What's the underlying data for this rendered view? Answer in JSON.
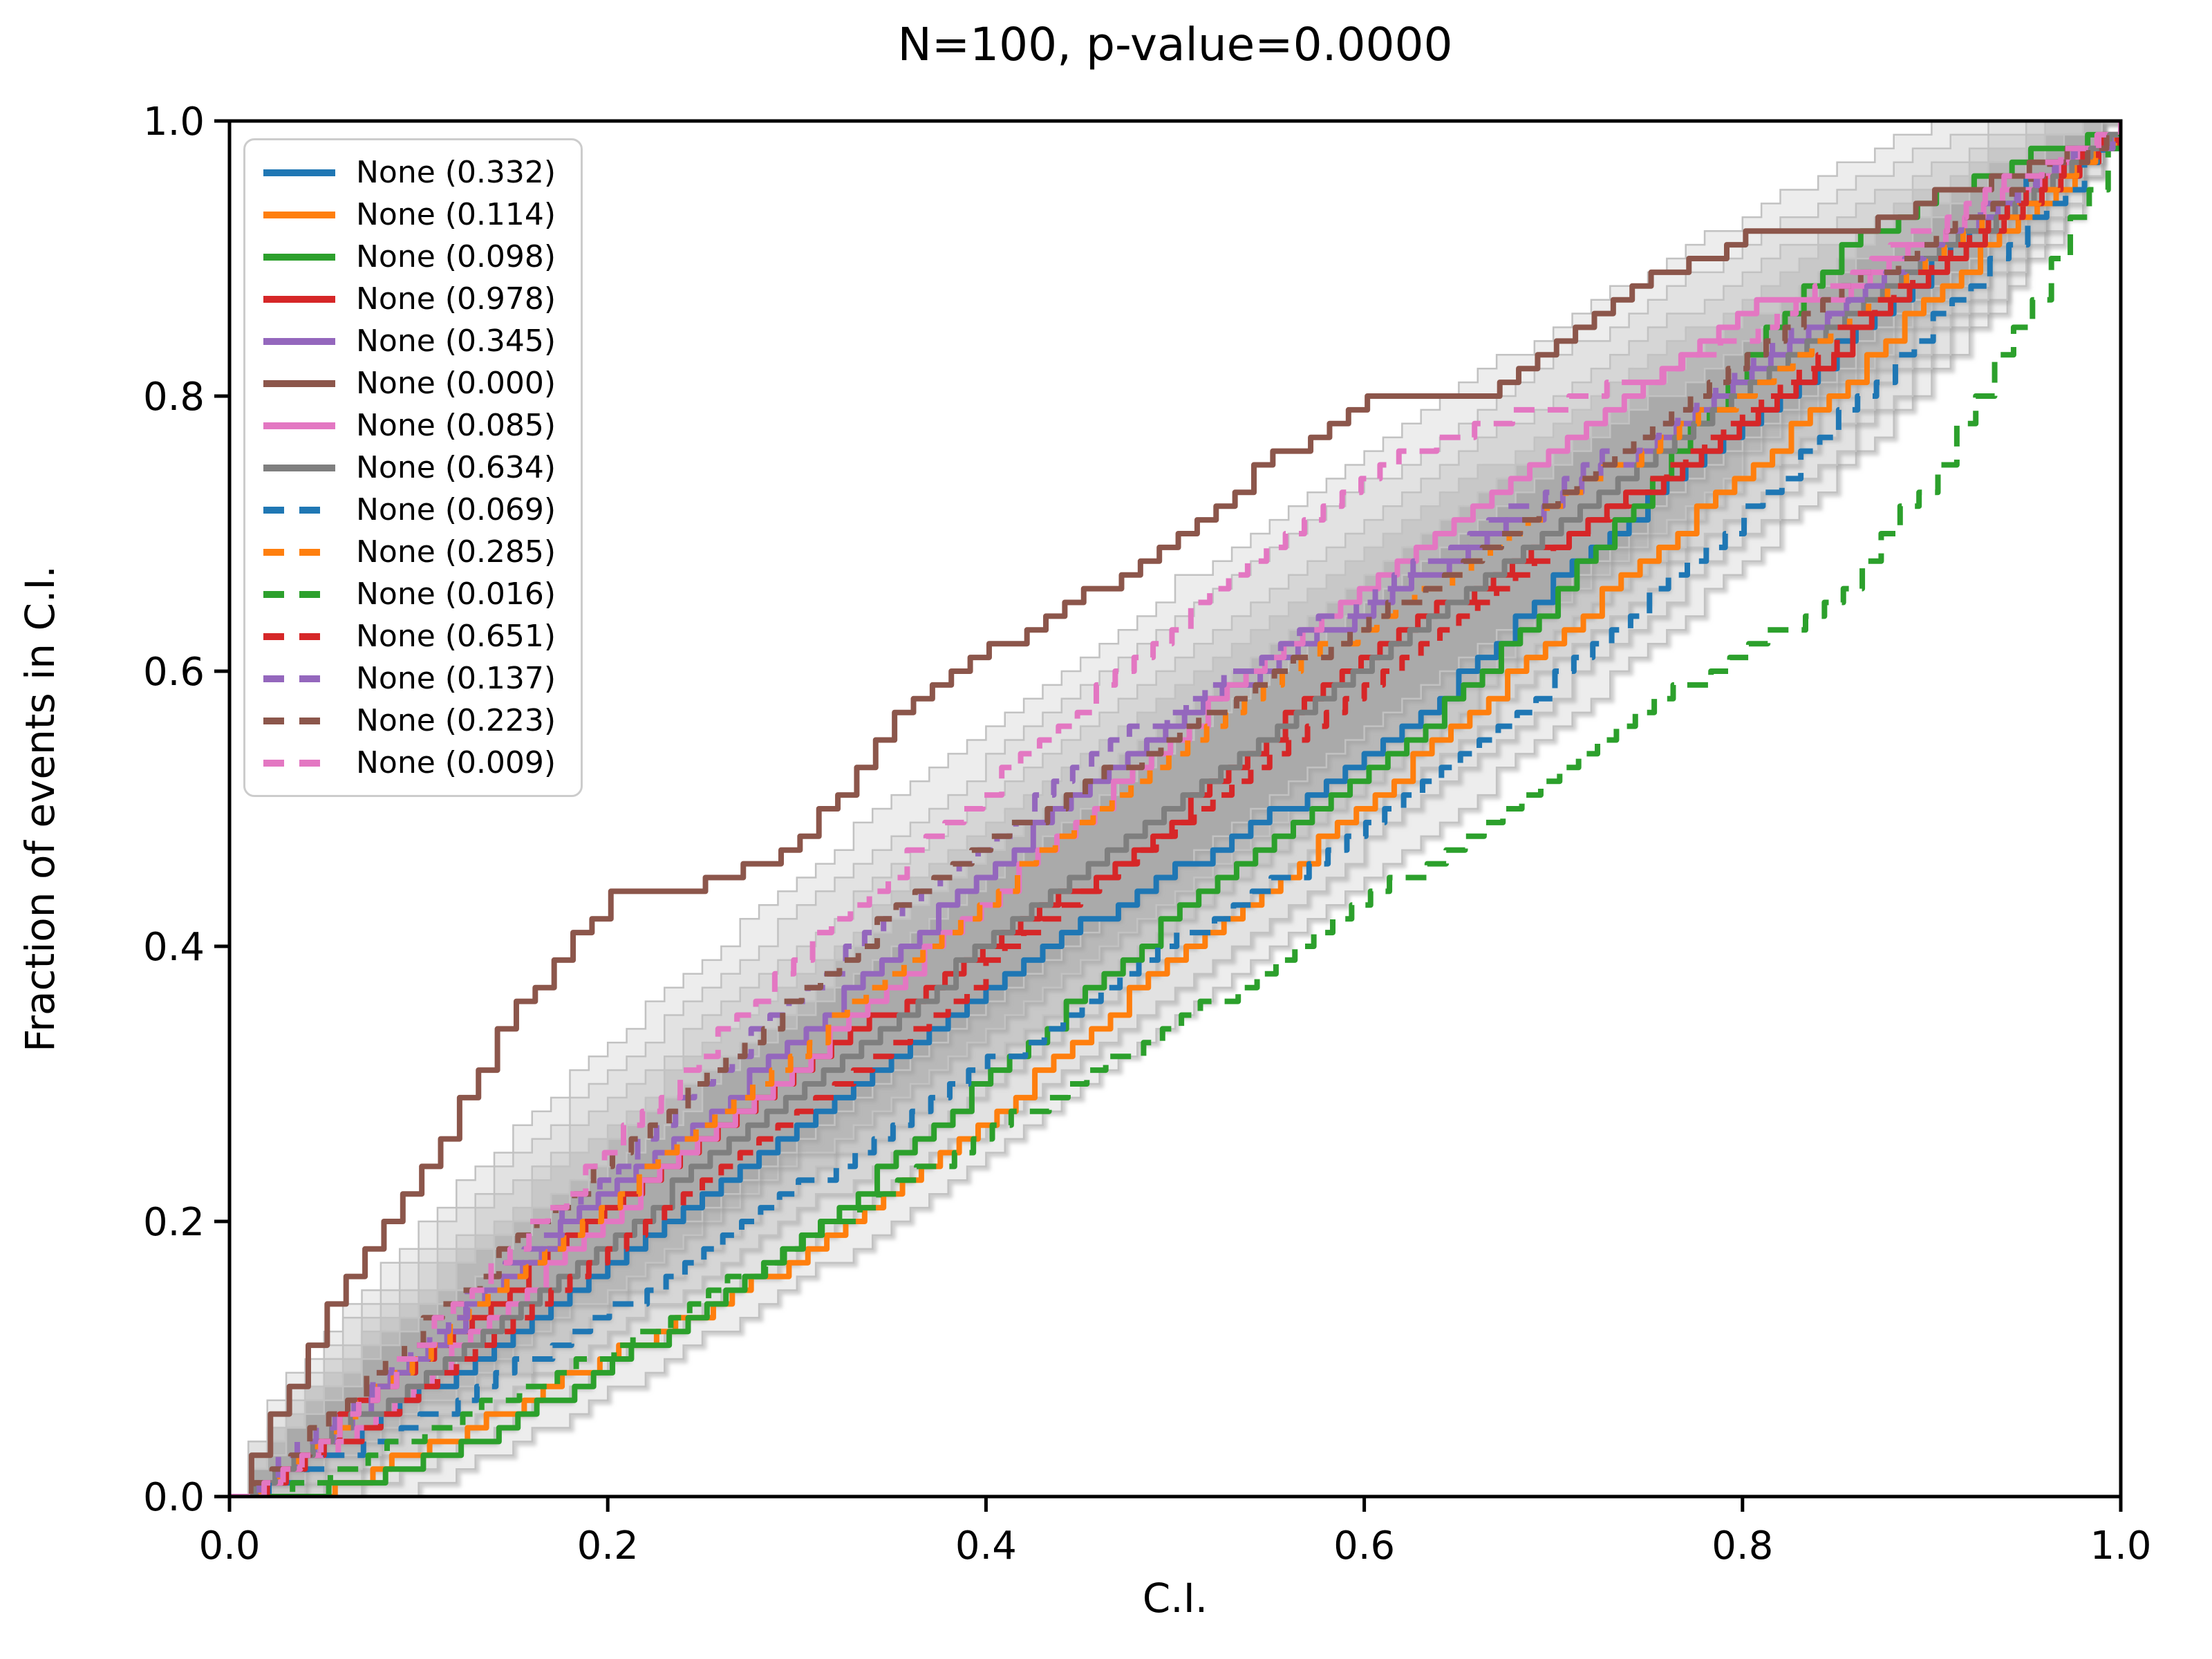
{
  "figure": {
    "background": "#ffffff",
    "kind": "matplotlib-style coverage plot"
  },
  "chart_data": {
    "type": "line",
    "title": "N=100, p-value=0.0000",
    "xlabel": "C.I.",
    "ylabel": "Fraction of events in C.I.",
    "n": 100,
    "xlim": [
      0,
      1
    ],
    "ylim": [
      0,
      1
    ],
    "xtick_values": [
      0,
      0.2,
      0.4,
      0.6,
      0.8,
      1.0
    ],
    "xtick_labels": [
      "0.0",
      "0.2",
      "0.4",
      "0.6",
      "0.8",
      "1.0"
    ],
    "ytick_values": [
      0,
      0.2,
      0.4,
      0.6,
      0.8,
      1.0
    ],
    "ytick_labels": [
      "0.0",
      "0.2",
      "0.4",
      "0.6",
      "0.8",
      "1.0"
    ],
    "grid": false,
    "legend": {
      "position": "upper left"
    },
    "confidence_bands": {
      "description": "nested stepped gray envelopes centered on the diagonal",
      "center_half_widths": [
        0.165,
        0.138,
        0.112,
        0.09,
        0.07,
        0.052
      ],
      "fill_colors": [
        "#ededed",
        "#e2e2e2",
        "#d6d6d6",
        "#c8c8c8",
        "#b8b8b8",
        "#aaaaaa"
      ],
      "edge_color": "#c2c2c2"
    },
    "x_grid": [
      0,
      0.05,
      0.1,
      0.15,
      0.2,
      0.25,
      0.3,
      0.35,
      0.4,
      0.45,
      0.5,
      0.55,
      0.6,
      0.65,
      0.7,
      0.75,
      0.8,
      0.85,
      0.9,
      0.95,
      1
    ],
    "series": [
      {
        "label": "None (0.332)",
        "p_value": 0.332,
        "color": "#1f77b4",
        "linestyle": "solid",
        "y": [
          0,
          0.04,
          0.08,
          0.12,
          0.17,
          0.22,
          0.27,
          0.32,
          0.37,
          0.42,
          0.46,
          0.5,
          0.54,
          0.6,
          0.67,
          0.73,
          0.78,
          0.84,
          0.9,
          0.96,
          1
        ]
      },
      {
        "label": "None (0.114)",
        "p_value": 0.114,
        "color": "#ff7f0e",
        "linestyle": "solid",
        "y": [
          0,
          0.01,
          0.04,
          0.07,
          0.11,
          0.14,
          0.18,
          0.23,
          0.28,
          0.34,
          0.4,
          0.45,
          0.51,
          0.57,
          0.63,
          0.69,
          0.75,
          0.81,
          0.88,
          0.94,
          1
        ]
      },
      {
        "label": "None (0.098)",
        "p_value": 0.098,
        "color": "#2ca02c",
        "linestyle": "solid",
        "y": [
          0,
          0.01,
          0.03,
          0.06,
          0.1,
          0.14,
          0.19,
          0.25,
          0.31,
          0.37,
          0.43,
          0.48,
          0.53,
          0.59,
          0.66,
          0.74,
          0.83,
          0.91,
          0.95,
          0.98,
          1
        ]
      },
      {
        "label": "None (0.978)",
        "p_value": 0.978,
        "color": "#d62728",
        "linestyle": "solid",
        "y": [
          0,
          0.05,
          0.11,
          0.16,
          0.22,
          0.27,
          0.32,
          0.36,
          0.41,
          0.45,
          0.5,
          0.56,
          0.62,
          0.66,
          0.7,
          0.74,
          0.79,
          0.84,
          0.9,
          0.95,
          1
        ]
      },
      {
        "label": "None (0.345)",
        "p_value": 0.345,
        "color": "#9467bd",
        "linestyle": "solid",
        "y": [
          0,
          0.05,
          0.11,
          0.17,
          0.23,
          0.28,
          0.34,
          0.4,
          0.46,
          0.52,
          0.57,
          0.61,
          0.65,
          0.69,
          0.73,
          0.77,
          0.82,
          0.87,
          0.91,
          0.96,
          1
        ]
      },
      {
        "label": "None (0.000)",
        "p_value": 0.0,
        "color": "#8c564b",
        "linestyle": "solid",
        "y": [
          0,
          0.14,
          0.24,
          0.36,
          0.44,
          0.45,
          0.48,
          0.57,
          0.62,
          0.66,
          0.7,
          0.76,
          0.8,
          0.8,
          0.84,
          0.89,
          0.92,
          0.92,
          0.95,
          0.97,
          1
        ]
      },
      {
        "label": "None (0.085)",
        "p_value": 0.085,
        "color": "#e377c2",
        "linestyle": "solid",
        "y": [
          0,
          0.04,
          0.09,
          0.15,
          0.21,
          0.27,
          0.32,
          0.38,
          0.44,
          0.5,
          0.56,
          0.62,
          0.67,
          0.72,
          0.77,
          0.82,
          0.87,
          0.88,
          0.92,
          0.96,
          1
        ]
      },
      {
        "label": "None (0.634)",
        "p_value": 0.634,
        "color": "#7f7f7f",
        "linestyle": "solid",
        "y": [
          0,
          0.05,
          0.09,
          0.14,
          0.19,
          0.25,
          0.3,
          0.35,
          0.41,
          0.46,
          0.51,
          0.56,
          0.61,
          0.66,
          0.71,
          0.76,
          0.81,
          0.86,
          0.91,
          0.95,
          1
        ]
      },
      {
        "label": "None (0.069)",
        "p_value": 0.069,
        "color": "#1f77b4",
        "linestyle": "dashed",
        "y": [
          0,
          0.03,
          0.06,
          0.1,
          0.14,
          0.18,
          0.23,
          0.27,
          0.32,
          0.36,
          0.41,
          0.45,
          0.49,
          0.54,
          0.6,
          0.66,
          0.72,
          0.79,
          0.86,
          0.93,
          1
        ]
      },
      {
        "label": "None (0.285)",
        "p_value": 0.285,
        "color": "#ff7f0e",
        "linestyle": "dashed",
        "y": [
          0,
          0.05,
          0.11,
          0.17,
          0.22,
          0.28,
          0.33,
          0.39,
          0.44,
          0.5,
          0.55,
          0.6,
          0.64,
          0.68,
          0.73,
          0.77,
          0.81,
          0.86,
          0.91,
          0.95,
          1
        ]
      },
      {
        "label": "None (0.016)",
        "p_value": 0.016,
        "color": "#2ca02c",
        "linestyle": "dashed",
        "y": [
          0,
          0.02,
          0.05,
          0.08,
          0.11,
          0.15,
          0.19,
          0.23,
          0.27,
          0.31,
          0.35,
          0.39,
          0.44,
          0.48,
          0.53,
          0.58,
          0.62,
          0.66,
          0.75,
          0.87,
          1
        ]
      },
      {
        "label": "None (0.651)",
        "p_value": 0.651,
        "color": "#d62728",
        "linestyle": "dashed",
        "y": [
          0,
          0.04,
          0.08,
          0.13,
          0.18,
          0.23,
          0.28,
          0.33,
          0.39,
          0.44,
          0.49,
          0.54,
          0.59,
          0.64,
          0.69,
          0.74,
          0.79,
          0.85,
          0.9,
          0.95,
          1
        ]
      },
      {
        "label": "None (0.137)",
        "p_value": 0.137,
        "color": "#9467bd",
        "linestyle": "dashed",
        "y": [
          0,
          0.06,
          0.12,
          0.18,
          0.24,
          0.31,
          0.37,
          0.43,
          0.48,
          0.54,
          0.58,
          0.62,
          0.66,
          0.7,
          0.74,
          0.78,
          0.83,
          0.87,
          0.92,
          0.96,
          1
        ]
      },
      {
        "label": "None (0.223)",
        "p_value": 0.223,
        "color": "#8c564b",
        "linestyle": "dashed",
        "y": [
          0,
          0.06,
          0.13,
          0.19,
          0.25,
          0.31,
          0.37,
          0.43,
          0.48,
          0.52,
          0.56,
          0.6,
          0.64,
          0.68,
          0.73,
          0.78,
          0.83,
          0.88,
          0.92,
          0.96,
          1
        ]
      },
      {
        "label": "None (0.009)",
        "p_value": 0.009,
        "color": "#e377c2",
        "linestyle": "dashed",
        "y": [
          0,
          0.05,
          0.12,
          0.19,
          0.26,
          0.33,
          0.4,
          0.46,
          0.52,
          0.58,
          0.64,
          0.7,
          0.75,
          0.78,
          0.8,
          0.82,
          0.85,
          0.89,
          0.93,
          0.97,
          1
        ]
      }
    ]
  }
}
